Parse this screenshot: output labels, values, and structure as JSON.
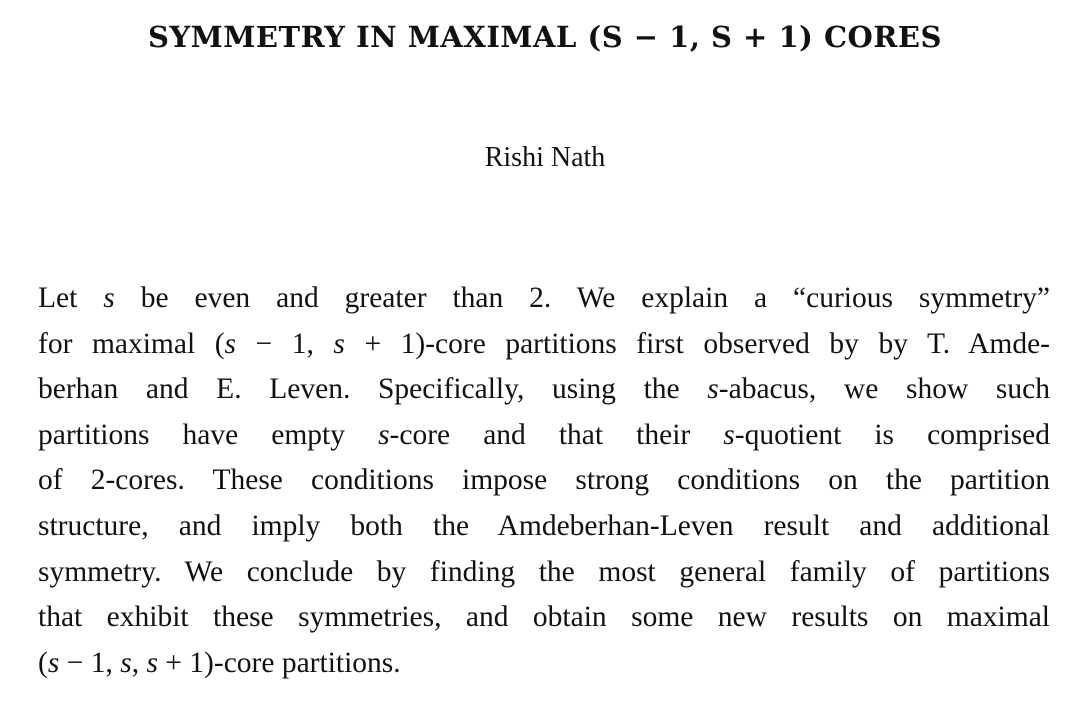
{
  "title": "SYMMETRY IN MAXIMAL (S − 1, S + 1) CORES",
  "author": "Rishi Nath",
  "abstract_lines": [
    [
      {
        "t": "Let "
      },
      {
        "t": "s",
        "m": true
      },
      {
        "t": " be even and greater than 2.  We explain a “curious symmetry”"
      }
    ],
    [
      {
        "t": "for maximal ("
      },
      {
        "t": "s",
        "m": true
      },
      {
        "t": " − 1, "
      },
      {
        "t": "s",
        "m": true
      },
      {
        "t": " + 1)-core partitions first observed by by T. Amde-"
      }
    ],
    [
      {
        "t": "berhan and E. Leven.  Specifically, using the "
      },
      {
        "t": "s",
        "m": true
      },
      {
        "t": "-abacus, we show such"
      }
    ],
    [
      {
        "t": "partitions have empty "
      },
      {
        "t": "s",
        "m": true
      },
      {
        "t": "-core and that their "
      },
      {
        "t": "s",
        "m": true
      },
      {
        "t": "-quotient is comprised"
      }
    ],
    [
      {
        "t": "of 2-cores.  These conditions impose strong conditions on the partition"
      }
    ],
    [
      {
        "t": "structure, and imply both the Amdeberhan-Leven result and additional"
      }
    ],
    [
      {
        "t": "symmetry.  We conclude by finding the most general family of partitions"
      }
    ],
    [
      {
        "t": "that exhibit these symmetries, and obtain some new results on maximal"
      }
    ],
    [
      {
        "t": "("
      },
      {
        "t": "s",
        "m": true
      },
      {
        "t": " − 1, "
      },
      {
        "t": "s",
        "m": true
      },
      {
        "t": ", "
      },
      {
        "t": "s",
        "m": true
      },
      {
        "t": " + 1)-core partitions."
      }
    ]
  ]
}
